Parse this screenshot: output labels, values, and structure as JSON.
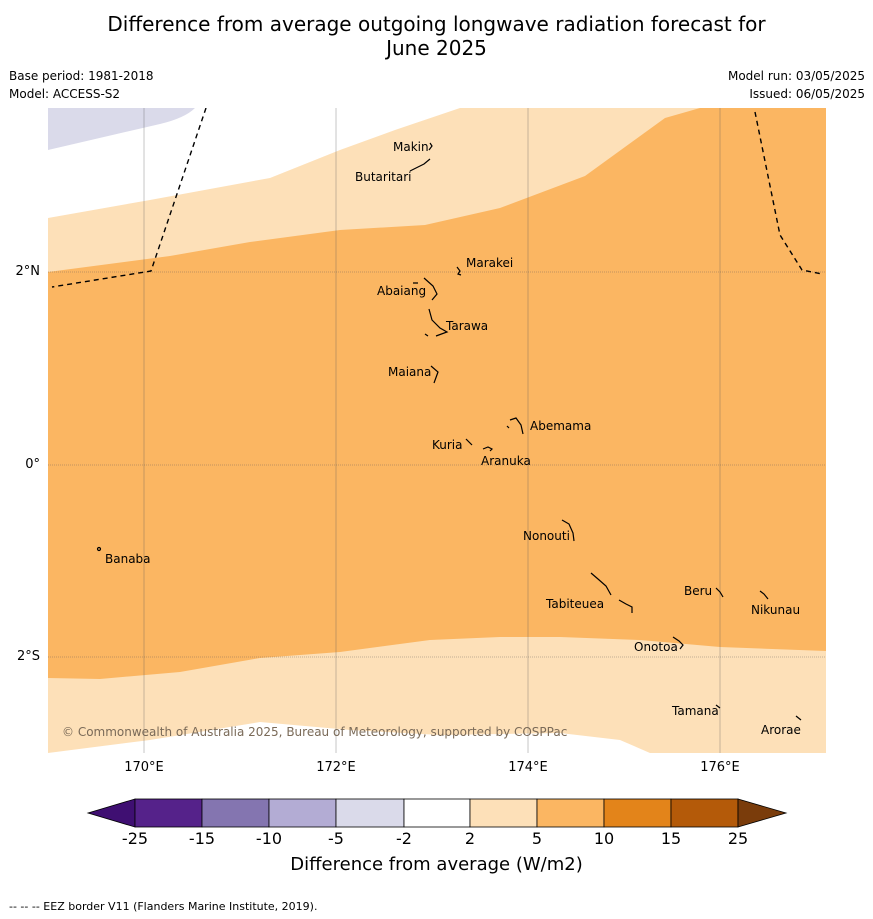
{
  "title_line1": "Difference from average outgoing longwave radiation forecast for",
  "title_line2": "June 2025",
  "base_period": "Base period: 1981-2018",
  "model": "Model: ACCESS-S2",
  "model_run": "Model run: 03/05/2025",
  "issued": "Issued: 06/05/2025",
  "lat_labels": [
    "2°N",
    "0°",
    "2°S"
  ],
  "lon_labels": [
    "170°E",
    "172°E",
    "174°E",
    "176°E"
  ],
  "places": [
    "Makin",
    "Butaritari",
    "Marakei",
    "Abaiang",
    "Tarawa",
    "Maiana",
    "Abemama",
    "Kuria",
    "Aranuka",
    "Banaba",
    "Nonouti",
    "Tabiteuea",
    "Beru",
    "Nikunau",
    "Onotoa",
    "Tamana",
    "Arorae"
  ],
  "copyright": "© Commonwealth of Australia 2025, Bureau of Meteorology, supported by COSPPac",
  "colorbar": {
    "ticks": [
      "-25",
      "-15",
      "-10",
      "-5",
      "-2",
      "2",
      "5",
      "10",
      "15",
      "25"
    ],
    "colors": [
      "#3f0f72",
      "#55228a",
      "#8475b0",
      "#b3acd4",
      "#dadaea",
      "#ffffff",
      "#fde0b8",
      "#fbb662",
      "#e3841a",
      "#b45a09",
      "#7a3c0b"
    ],
    "label": "Difference from average (W/m2)"
  },
  "footer": "--  --  -- EEZ border V11 (Flanders Marine Institute, 2019)."
}
